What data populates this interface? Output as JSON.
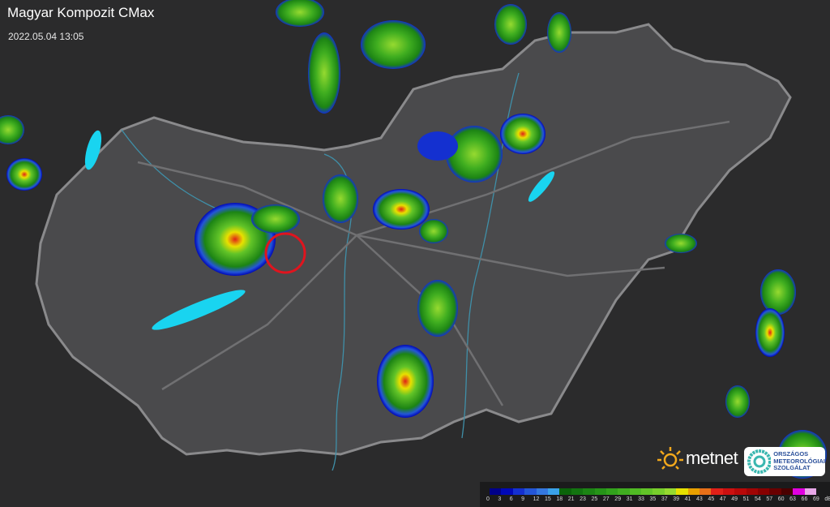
{
  "header": {
    "title": "Magyar Kompozit CMax",
    "timestamp": "2022.05.04 13:05"
  },
  "map": {
    "marker_color": "#e0141e",
    "lake_color": "#19d4f0",
    "country_fill": "#4a4a4c",
    "border_color": "#8a8a8c"
  },
  "legend": {
    "unit": "dBZ",
    "labels": [
      "0",
      "3",
      "6",
      "9",
      "12",
      "15",
      "18",
      "21",
      "23",
      "25",
      "27",
      "29",
      "31",
      "33",
      "35",
      "37",
      "39",
      "41",
      "43",
      "45",
      "47",
      "49",
      "51",
      "54",
      "57",
      "60",
      "63",
      "66",
      "69"
    ],
    "colors": [
      "#00008a",
      "#0008b8",
      "#1430d0",
      "#2456d8",
      "#3478e0",
      "#3aa2ea",
      "#0a640a",
      "#127410",
      "#1c8414",
      "#269418",
      "#32a21c",
      "#40ae20",
      "#50ba24",
      "#62c428",
      "#78ce2c",
      "#96da30",
      "#e6e000",
      "#e8a000",
      "#e87018",
      "#e02018",
      "#cc1010",
      "#b80808",
      "#a00404",
      "#880000",
      "#6a0000",
      "#4a0000",
      "#e000e0",
      "#e8a8e8",
      "#80e2ea"
    ]
  },
  "logos": {
    "metnet": "metnet",
    "omsz": [
      "ORSZÁGOS",
      "METEOROLÓGIAI",
      "SZOLGÁLAT"
    ]
  }
}
